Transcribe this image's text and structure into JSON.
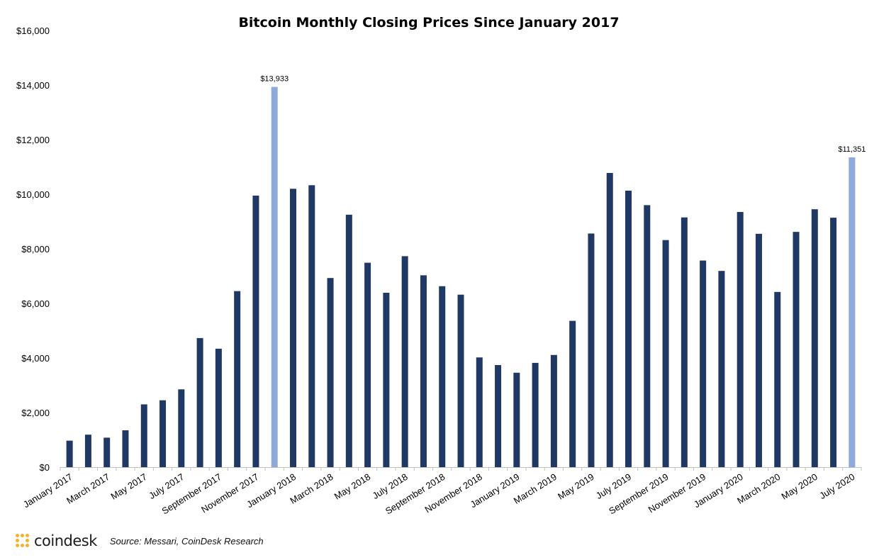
{
  "chart_data": {
    "type": "bar",
    "title": "Bitcoin Monthly Closing Prices Since January 2017",
    "xlabel": "",
    "ylabel": "",
    "ylim": [
      0,
      16000
    ],
    "yticks": [
      0,
      2000,
      4000,
      6000,
      8000,
      10000,
      12000,
      14000,
      16000
    ],
    "ytick_labels": [
      "$0",
      "$2,000",
      "$4,000",
      "$6,000",
      "$8,000",
      "$10,000",
      "$12,000",
      "$14,000",
      "$16,000"
    ],
    "grid": false,
    "legend": "none",
    "categories": [
      "January 2017",
      "February 2017",
      "March 2017",
      "April 2017",
      "May 2017",
      "June 2017",
      "July 2017",
      "August 2017",
      "September 2017",
      "October 2017",
      "November 2017",
      "December 2017",
      "January 2018",
      "February 2018",
      "March 2018",
      "April 2018",
      "May 2018",
      "June 2018",
      "July 2018",
      "August 2018",
      "September 2018",
      "October 2018",
      "November 2018",
      "December 2018",
      "January 2019",
      "February 2019",
      "March 2019",
      "April 2019",
      "May 2019",
      "June 2019",
      "July 2019",
      "August 2019",
      "September 2019",
      "October 2019",
      "November 2019",
      "December 2019",
      "January 2020",
      "February 2020",
      "March 2020",
      "April 2020",
      "May 2020",
      "June 2020",
      "July 2020"
    ],
    "shown_category_labels": [
      "January 2017",
      "March 2017",
      "May 2017",
      "July 2017",
      "September 2017",
      "November 2017",
      "January 2018",
      "March 2018",
      "May 2018",
      "July 2018",
      "September 2018",
      "November 2018",
      "January 2019",
      "March 2019",
      "May 2019",
      "July 2019",
      "September 2019",
      "November 2019",
      "January 2020",
      "March 2020",
      "May 2020",
      "July 2020"
    ],
    "values": [
      970,
      1190,
      1080,
      1350,
      2300,
      2450,
      2850,
      4730,
      4340,
      6450,
      9950,
      13933,
      10200,
      10330,
      6930,
      9250,
      7490,
      6390,
      7730,
      7030,
      6630,
      6320,
      4020,
      3740,
      3460,
      3820,
      4110,
      5360,
      8560,
      10780,
      10130,
      9600,
      8320,
      9150,
      7570,
      7190,
      9350,
      8550,
      6420,
      8620,
      9450,
      9140,
      11351
    ],
    "highlight_indices": [
      11,
      42
    ],
    "data_labels": [
      {
        "index": 11,
        "text": "$13,933"
      },
      {
        "index": 42,
        "text": "$11,351"
      }
    ],
    "colors": {
      "bar": "#1f3864",
      "highlight": "#8eaadb",
      "axis": "#bfbfbf",
      "text": "#000000"
    }
  },
  "footer": {
    "logo_text": "coindesk",
    "logo_icon": "coindesk-dot-grid-icon",
    "logo_color": "#f6b12b",
    "source": "Source: Messari, CoinDesk Research"
  }
}
